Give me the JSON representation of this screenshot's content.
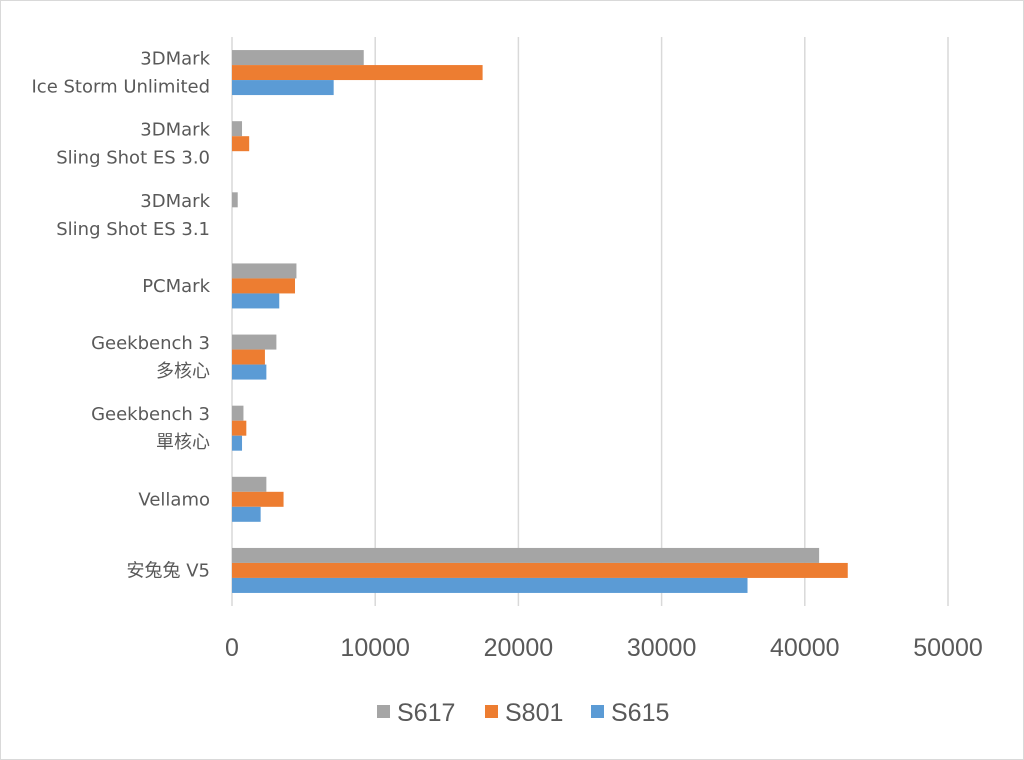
{
  "chart_data": {
    "type": "bar",
    "orientation": "horizontal",
    "title": "",
    "xlabel": "",
    "ylabel": "",
    "xlim": [
      0,
      50000
    ],
    "ticks": [
      "0",
      "10000",
      "20000",
      "30000",
      "40000",
      "50000"
    ],
    "tick_values": [
      0,
      10000,
      20000,
      30000,
      40000,
      50000
    ],
    "grid": true,
    "legend_position": "bottom",
    "categories": [
      [
        "3DMark",
        "Ice Storm Unlimited"
      ],
      [
        "3DMark",
        "Sling Shot ES 3.0"
      ],
      [
        "3DMark",
        "Sling Shot ES 3.1"
      ],
      [
        "PCMark"
      ],
      [
        "Geekbench 3",
        "多核心"
      ],
      [
        "Geekbench 3",
        "單核心"
      ],
      [
        "Vellamo"
      ],
      [
        "安兔兔 V5"
      ]
    ],
    "series": [
      {
        "name": "S617",
        "color": "#a5a5a5",
        "values": [
          9200,
          700,
          400,
          4500,
          3100,
          800,
          2400,
          41000
        ]
      },
      {
        "name": "S801",
        "color": "#ed7d31",
        "values": [
          17500,
          1200,
          0,
          4400,
          2300,
          1000,
          3600,
          43000
        ]
      },
      {
        "name": "S615",
        "color": "#5b9bd5",
        "values": [
          7100,
          0,
          0,
          3300,
          2400,
          700,
          2000,
          36000
        ]
      }
    ]
  }
}
